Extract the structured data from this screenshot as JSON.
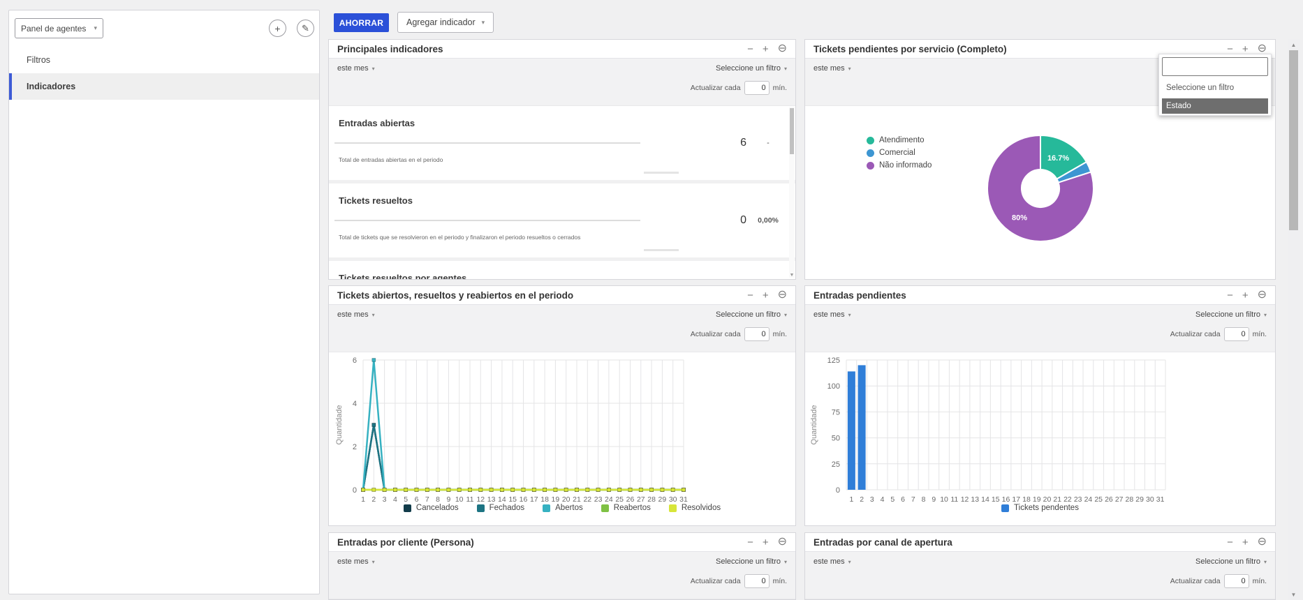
{
  "colors": {
    "accent": "#2b50d8",
    "selected_border": "#3d5bd6",
    "bar_blue": "#2f7ed8"
  },
  "icons": {
    "collapse": "−",
    "expand": "+",
    "remove": "⊖",
    "caret": "▾",
    "add": "+",
    "edit": "✎",
    "scroll_up": "▲",
    "scroll_down": "▼"
  },
  "sidebar": {
    "panel_selector_label": "Panel de agentes",
    "items": [
      {
        "label": "Filtros",
        "selected": false
      },
      {
        "label": "Indicadores",
        "selected": true
      }
    ]
  },
  "toolbar": {
    "save_label": "AHORRAR",
    "add_indicator_label": "Agregar indicador"
  },
  "common": {
    "period_label": "este mes",
    "filter_label": "Seleccione un filtro",
    "refresh_prefix": "Actualizar cada",
    "refresh_value": "0",
    "refresh_suffix": "mín."
  },
  "panels": {
    "principales": {
      "title": "Principales indicadores",
      "indicators": [
        {
          "title": "Entradas abiertas",
          "value": "6",
          "secondary": "-",
          "description": "Total de entradas abiertas en el periodo"
        },
        {
          "title": "Tickets resueltos",
          "value": "0",
          "secondary": "0,00%",
          "description": "Total de tickets que se resolvieron en el periodo y finalizaron el periodo resueltos o cerrados"
        },
        {
          "title": "Tickets resueltos por agentes"
        }
      ]
    },
    "servicio": {
      "title": "Tickets pendientes por servicio (Completo)",
      "dropdown": {
        "search_value": "",
        "options": [
          "Seleccione un filtro",
          "Estado"
        ],
        "highlighted": "Estado"
      }
    },
    "periodo": {
      "title": "Tickets abiertos, resueltos y reabiertos en el periodo"
    },
    "pendientes": {
      "title": "Entradas pendientes"
    },
    "cliente": {
      "title": "Entradas por cliente (Persona)"
    },
    "canal": {
      "title": "Entradas por canal de apertura"
    }
  },
  "chart_data": [
    {
      "id": "tickets-pendientes-por-servicio",
      "type": "pie",
      "donut": true,
      "labels": [
        "Atendimento",
        "Comercial",
        "Não informado"
      ],
      "values": [
        16.7,
        3.3,
        80
      ],
      "colors": [
        "#26b99a",
        "#3d96d2",
        "#9b59b6"
      ],
      "slice_labels": [
        "16.7%",
        "",
        "80%"
      ],
      "legend_position": "left"
    },
    {
      "id": "tickets-abiertos-resueltos-reabiertos",
      "type": "line",
      "ylabel": "Quantidade",
      "yticks": [
        0,
        2,
        4,
        6
      ],
      "ylim": [
        0,
        6
      ],
      "x": [
        1,
        2,
        3,
        4,
        5,
        6,
        7,
        8,
        9,
        10,
        11,
        12,
        13,
        14,
        15,
        16,
        17,
        18,
        19,
        20,
        21,
        22,
        23,
        24,
        25,
        26,
        27,
        28,
        29,
        30,
        31
      ],
      "series": [
        {
          "name": "Cancelados",
          "color": "#123c4a",
          "values": [
            0,
            3,
            0,
            0,
            0,
            0,
            0,
            0,
            0,
            0,
            0,
            0,
            0,
            0,
            0,
            0,
            0,
            0,
            0,
            0,
            0,
            0,
            0,
            0,
            0,
            0,
            0,
            0,
            0,
            0,
            0
          ]
        },
        {
          "name": "Fechados",
          "color": "#1d7483",
          "values": [
            0,
            3,
            0,
            0,
            0,
            0,
            0,
            0,
            0,
            0,
            0,
            0,
            0,
            0,
            0,
            0,
            0,
            0,
            0,
            0,
            0,
            0,
            0,
            0,
            0,
            0,
            0,
            0,
            0,
            0,
            0
          ]
        },
        {
          "name": "Abertos",
          "color": "#36b1c1",
          "values": [
            0,
            6,
            0,
            0,
            0,
            0,
            0,
            0,
            0,
            0,
            0,
            0,
            0,
            0,
            0,
            0,
            0,
            0,
            0,
            0,
            0,
            0,
            0,
            0,
            0,
            0,
            0,
            0,
            0,
            0,
            0
          ]
        },
        {
          "name": "Reabertos",
          "color": "#7fc144",
          "values": [
            0,
            0,
            0,
            0,
            0,
            0,
            0,
            0,
            0,
            0,
            0,
            0,
            0,
            0,
            0,
            0,
            0,
            0,
            0,
            0,
            0,
            0,
            0,
            0,
            0,
            0,
            0,
            0,
            0,
            0,
            0
          ]
        },
        {
          "name": "Resolvidos",
          "color": "#d7e539",
          "values": [
            0,
            0,
            0,
            0,
            0,
            0,
            0,
            0,
            0,
            0,
            0,
            0,
            0,
            0,
            0,
            0,
            0,
            0,
            0,
            0,
            0,
            0,
            0,
            0,
            0,
            0,
            0,
            0,
            0,
            0,
            0
          ]
        }
      ],
      "grid": true,
      "legend_position": "bottom"
    },
    {
      "id": "entradas-pendientes",
      "type": "bar",
      "ylabel": "Quantidade",
      "yticks": [
        0,
        25,
        50,
        75,
        100,
        125
      ],
      "ylim": [
        0,
        125
      ],
      "x": [
        1,
        2,
        3,
        4,
        5,
        6,
        7,
        8,
        9,
        10,
        11,
        12,
        13,
        14,
        15,
        16,
        17,
        18,
        19,
        20,
        21,
        22,
        23,
        24,
        25,
        26,
        27,
        28,
        29,
        30,
        31
      ],
      "series": [
        {
          "name": "Tickets pendentes",
          "color": "#2f7ed8",
          "values": [
            114,
            120,
            0,
            0,
            0,
            0,
            0,
            0,
            0,
            0,
            0,
            0,
            0,
            0,
            0,
            0,
            0,
            0,
            0,
            0,
            0,
            0,
            0,
            0,
            0,
            0,
            0,
            0,
            0,
            0,
            0
          ]
        }
      ],
      "grid": true,
      "legend_position": "bottom"
    }
  ]
}
